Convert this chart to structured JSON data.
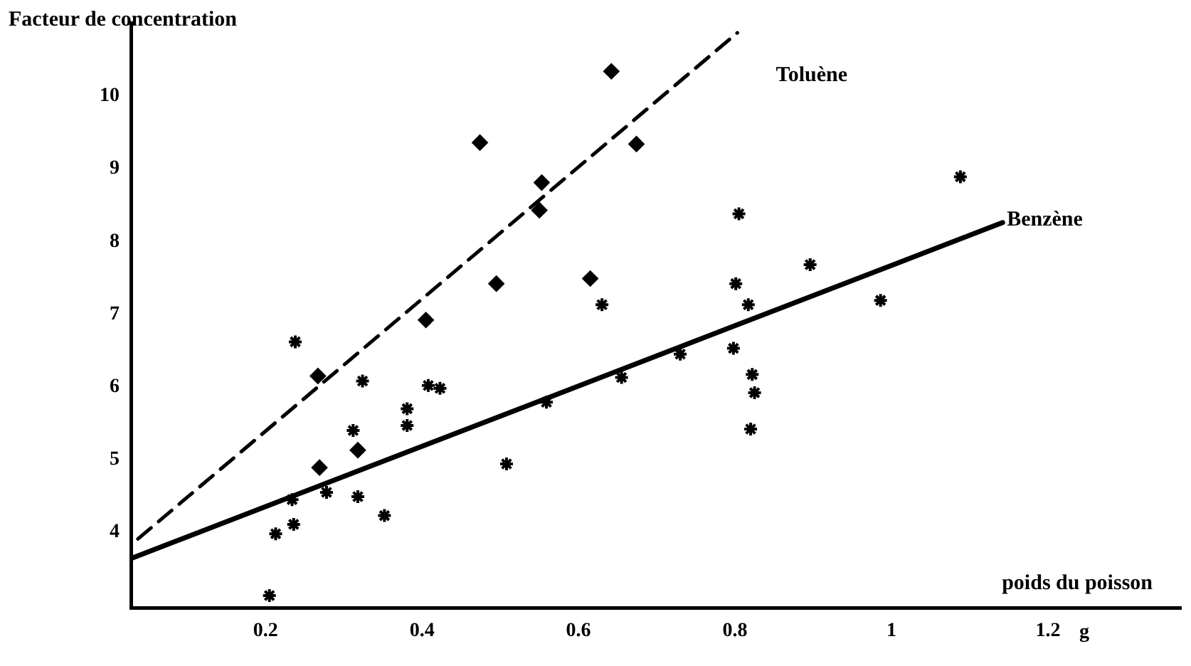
{
  "chart_data": {
    "type": "scatter",
    "ylabel": "Facteur de concentration",
    "xlabel": "poids du poisson",
    "xlim": [
      0.028,
      1.37
    ],
    "ylim": [
      2.96,
      11
    ],
    "xticks": [
      0.2,
      0.4,
      0.6,
      0.8,
      1,
      1.2
    ],
    "annotations": [
      "g"
    ],
    "yticks": [
      4,
      5,
      6,
      7,
      8,
      9,
      10
    ],
    "grid": false,
    "legend": false,
    "series": [
      {
        "type": "scatter",
        "color": "#000000",
        "marker": "diamond",
        "x": [
          0.642,
          0.474,
          0.553,
          0.55,
          0.674,
          0.495,
          0.615,
          0.405,
          0.267,
          0.318,
          0.269
        ],
        "values": [
          10.34,
          9.36,
          8.81,
          8.43,
          9.34,
          7.42,
          7.49,
          6.92,
          6.15,
          5.13,
          4.89
        ]
      },
      {
        "type": "line",
        "name": "Toluène",
        "color": "#000000",
        "line_style": "dashed",
        "marker": "none",
        "x": [
          0.037,
          0.803
        ],
        "values": [
          3.91,
          10.87
        ]
      },
      {
        "type": "scatter",
        "color": "#000000",
        "marker": "cross",
        "x": [
          0.238,
          0.324,
          0.408,
          0.423,
          0.381,
          0.381,
          0.312,
          0.278,
          0.318,
          0.234,
          0.236,
          0.213,
          0.352,
          0.508,
          0.559,
          0.655,
          0.205,
          1.088,
          0.805,
          0.896,
          0.801,
          0.817,
          0.986,
          0.798,
          0.73,
          0.822,
          0.825,
          0.82,
          0.63
        ],
        "values": [
          6.62,
          6.08,
          6.02,
          5.98,
          5.7,
          5.47,
          5.4,
          4.55,
          4.49,
          4.45,
          4.11,
          3.98,
          4.23,
          4.94,
          5.79,
          6.13,
          3.13,
          8.89,
          8.38,
          7.68,
          7.42,
          7.13,
          7.19,
          6.53,
          6.45,
          6.17,
          5.92,
          5.42,
          7.13
        ]
      },
      {
        "type": "line",
        "name": "Benzène",
        "color": "#000000",
        "line_style": "solid",
        "marker": "none",
        "x": [
          0.028,
          1.142
        ],
        "values": [
          3.64,
          8.26
        ]
      }
    ]
  }
}
